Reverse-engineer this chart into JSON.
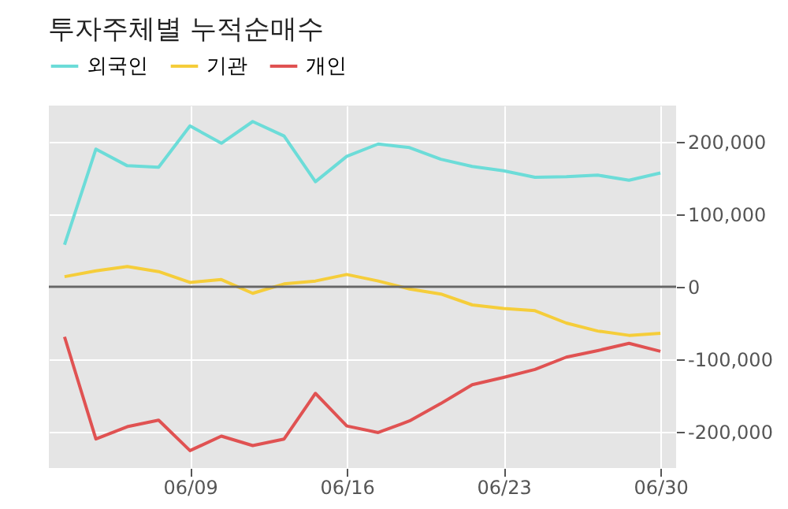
{
  "chart_data": {
    "type": "line",
    "title": "투자주체별 누적순매수",
    "categories": [
      null,
      null,
      null,
      null,
      "06/09",
      null,
      null,
      null,
      null,
      "06/16",
      null,
      null,
      null,
      null,
      "06/23",
      null,
      null,
      null,
      null,
      "06/30"
    ],
    "series": [
      {
        "name": "외국인",
        "color": "#6cdcd8",
        "values": [
          58000,
          190000,
          167000,
          165000,
          222000,
          198000,
          228000,
          208000,
          145000,
          180000,
          197000,
          192000,
          176000,
          166000,
          160000,
          151000,
          152000,
          154000,
          147000,
          157000
        ]
      },
      {
        "name": "기관",
        "color": "#f5cd3a",
        "values": [
          14000,
          22000,
          28000,
          21000,
          6000,
          10000,
          -9000,
          4000,
          8000,
          17000,
          8000,
          -3000,
          -10000,
          -25000,
          -30000,
          -33000,
          -50000,
          -61000,
          -67000,
          -64000
        ]
      },
      {
        "name": "개인",
        "color": "#e05252",
        "values": [
          -69000,
          -210000,
          -193000,
          -184000,
          -226000,
          -206000,
          -219000,
          -210000,
          -147000,
          -192000,
          -201000,
          -185000,
          -161000,
          -135000,
          -125000,
          -114000,
          -97000,
          -88000,
          -78000,
          -89000
        ]
      }
    ],
    "ylim": [
      -250000,
      250000
    ],
    "yticks": [
      {
        "value": -200000,
        "label": "-200,000"
      },
      {
        "value": -100000,
        "label": "-100,000"
      },
      0,
      {
        "value": 100000,
        "label": "100,000"
      },
      {
        "value": 200000,
        "label": "200,000"
      }
    ],
    "ref_lines": [
      {
        "axis": "y",
        "value": 0,
        "color": "#666666"
      }
    ],
    "grid": true,
    "legend": "top left"
  }
}
